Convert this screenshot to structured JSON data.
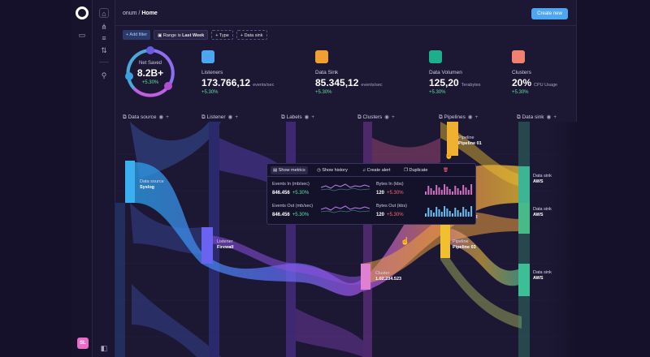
{
  "breadcrumb": {
    "org": "onum",
    "sep": "/",
    "page": "Home"
  },
  "header": {
    "create_label": "Create new"
  },
  "filters": {
    "add_label": "+ Add filter",
    "range_prefix": "Range is",
    "range_value": "Last Week",
    "type_label": "+ Type",
    "datasink_label": "+ Data sink"
  },
  "summary": {
    "label": "Net Saved",
    "value": "8.2B+",
    "change": "+5.30%"
  },
  "stats": [
    {
      "label": "Listeners",
      "value": "173.766,12",
      "unit": "events/sec",
      "change": "+5.30%",
      "color": "#4fa6f0"
    },
    {
      "label": "Data Sink",
      "value": "85.345,12",
      "unit": "events/sec",
      "change": "+5.30%",
      "color": "#f0a030"
    },
    {
      "label": "Data Volumen",
      "value": "125,20",
      "unit": "Terabytes",
      "change": "+5.30%",
      "color": "#1fae8c"
    },
    {
      "label": "Clusters",
      "value": "20%",
      "unit": "CPU Usage",
      "change": "+5.30%",
      "color": "#f08070"
    }
  ],
  "columns": [
    "Data source",
    "Listener",
    "Labels",
    "Clusters",
    "Pipelines",
    "Data sink"
  ],
  "nodes": {
    "datasource": {
      "type": "Data source",
      "name": "Syslog"
    },
    "listener": {
      "type": "Listener",
      "name": "Firewall"
    },
    "cluster": {
      "type": "Cluster",
      "name": "1.02.234.523"
    },
    "pipeline1": {
      "type": "Pipeline",
      "name": "Pipeline 01"
    },
    "pipeline3": {
      "type": "Pipeline",
      "name": "Pipeline 03"
    },
    "pipeline2_partial": "e 02",
    "sink1": {
      "type": "Data sink",
      "name": "AWS"
    },
    "sink2": {
      "type": "Data sink",
      "name": "AWS"
    },
    "sink3": {
      "type": "Data sink",
      "name": "AWS"
    }
  },
  "popup": {
    "actions": [
      "Show metrics",
      "Show history",
      "Create alert",
      "Duplicate"
    ],
    "metrics": [
      {
        "title": "Events In (mb/sec)",
        "value": "846.456",
        "change": "+5.30%",
        "change_color": "#5ee0a0"
      },
      {
        "title": "Bytes In (kbs)",
        "value": "120",
        "change": "+5.30%",
        "change_color": "#ff6a6a"
      },
      {
        "title": "Events Out (mb/sec)",
        "value": "846.456",
        "change": "+5.30%",
        "change_color": "#5ee0a0"
      },
      {
        "title": "Bytes Out (kbs)",
        "value": "120",
        "change": "+5.30%",
        "change_color": "#ff6a6a"
      }
    ]
  },
  "user": {
    "initials": "SL"
  },
  "icons": {
    "rail": [
      "logo-icon",
      "folder-icon"
    ],
    "side": [
      "home-icon",
      "hierarchy-icon",
      "pipelines-icon",
      "flows-icon",
      "alerts-icon",
      "collapse-icon"
    ]
  }
}
